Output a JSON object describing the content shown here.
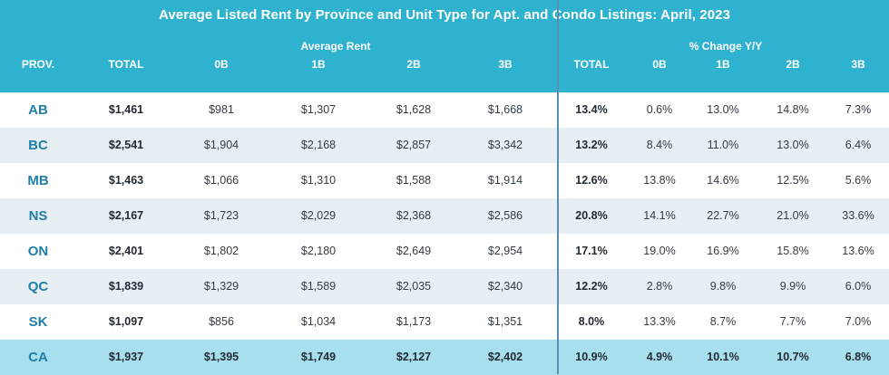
{
  "title": "Average Listed Rent by Province and Unit Type for Apt. and Condo Listings: April, 2023",
  "group_labels": {
    "average_rent": "Average Rent",
    "pct_change": "% Change Y/Y"
  },
  "columns": [
    "PROV.",
    "TOTAL",
    "0B",
    "1B",
    "2B",
    "3B",
    "TOTAL",
    "0B",
    "1B",
    "2B",
    "3B"
  ],
  "rows": [
    [
      "AB",
      "$1,461",
      "$981",
      "$1,307",
      "$1,628",
      "$1,668",
      "13.4%",
      "0.6%",
      "13.0%",
      "14.8%",
      "7.3%"
    ],
    [
      "BC",
      "$2,541",
      "$1,904",
      "$2,168",
      "$2,857",
      "$3,342",
      "13.2%",
      "8.4%",
      "11.0%",
      "13.0%",
      "6.4%"
    ],
    [
      "MB",
      "$1,463",
      "$1,066",
      "$1,310",
      "$1,588",
      "$1,914",
      "12.6%",
      "13.8%",
      "14.6%",
      "12.5%",
      "5.6%"
    ],
    [
      "NS",
      "$2,167",
      "$1,723",
      "$2,029",
      "$2,368",
      "$2,586",
      "20.8%",
      "14.1%",
      "22.7%",
      "21.0%",
      "33.6%"
    ],
    [
      "ON",
      "$2,401",
      "$1,802",
      "$2,180",
      "$2,649",
      "$2,954",
      "17.1%",
      "19.0%",
      "16.9%",
      "15.8%",
      "13.6%"
    ],
    [
      "QC",
      "$1,839",
      "$1,329",
      "$1,589",
      "$2,035",
      "$2,340",
      "12.2%",
      "2.8%",
      "9.8%",
      "9.9%",
      "6.0%"
    ],
    [
      "SK",
      "$1,097",
      "$856",
      "$1,034",
      "$1,173",
      "$1,351",
      "8.0%",
      "13.3%",
      "8.7%",
      "7.7%",
      "7.0%"
    ],
    [
      "CA",
      "$1,937",
      "$1,395",
      "$1,749",
      "$2,127",
      "$2,402",
      "10.9%",
      "4.9%",
      "10.1%",
      "10.7%",
      "6.8%"
    ]
  ],
  "colors": {
    "header_bg": "#2fb2cf",
    "alt_row_bg": "#e7eef4",
    "total_row_bg": "#a8dfee",
    "province_text": "#1f7fa6",
    "divider": "#5b8fb2"
  }
}
